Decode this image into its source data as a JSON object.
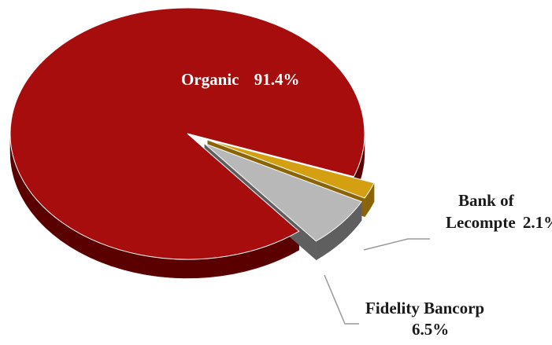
{
  "chart_data": {
    "type": "pie",
    "style": "3d-exploded",
    "title": "",
    "slices": [
      {
        "name": "Organic",
        "value": 91.4,
        "label_name": "Organic",
        "label_value": "91.4%",
        "color": "#a80d0d",
        "side_color": "#5a0000"
      },
      {
        "name": "Bank of Lecompte",
        "value": 2.1,
        "label_name": "Bank of",
        "label_name_2": "Lecompte",
        "label_value": "2.1%",
        "color": "#d4a012",
        "side_color": "#8a6406"
      },
      {
        "name": "Fidelity Bancorp",
        "value": 6.5,
        "label_name": "Fidelity Bancorp",
        "label_value": "6.5%",
        "color": "#b8b8b8",
        "side_color": "#5f5f5f"
      }
    ]
  }
}
